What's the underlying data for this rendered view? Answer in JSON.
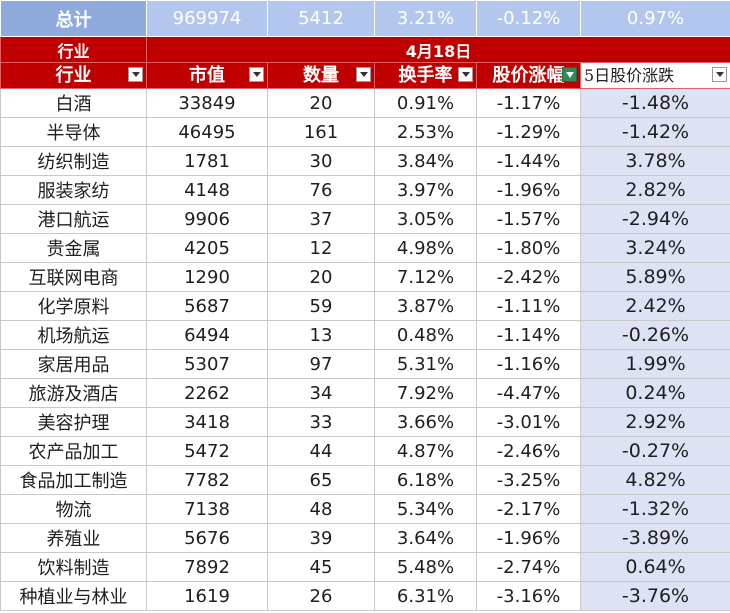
{
  "total": {
    "label": "总计",
    "market_value": "969974",
    "count": "5412",
    "turnover": "3.21%",
    "price_change": "-0.12%",
    "change_5d": "0.97%"
  },
  "group_header": {
    "label": "行业",
    "date": "4月18日"
  },
  "columns": [
    {
      "label": "行业"
    },
    {
      "label": "市值"
    },
    {
      "label": "数量"
    },
    {
      "label": "换手率"
    },
    {
      "label": "股价涨幅"
    },
    {
      "label": "5日股价涨跌"
    }
  ],
  "rows": [
    {
      "industry": "白酒",
      "market_value": "33849",
      "count": "20",
      "turnover": "0.91%",
      "price_change": "-1.17%",
      "change_5d": "-1.48%"
    },
    {
      "industry": "半导体",
      "market_value": "46495",
      "count": "161",
      "turnover": "2.53%",
      "price_change": "-1.29%",
      "change_5d": "-1.42%"
    },
    {
      "industry": "纺织制造",
      "market_value": "1781",
      "count": "30",
      "turnover": "3.84%",
      "price_change": "-1.44%",
      "change_5d": "3.78%"
    },
    {
      "industry": "服装家纺",
      "market_value": "4148",
      "count": "76",
      "turnover": "3.97%",
      "price_change": "-1.96%",
      "change_5d": "2.82%"
    },
    {
      "industry": "港口航运",
      "market_value": "9906",
      "count": "37",
      "turnover": "3.05%",
      "price_change": "-1.57%",
      "change_5d": "-2.94%"
    },
    {
      "industry": "贵金属",
      "market_value": "4205",
      "count": "12",
      "turnover": "4.98%",
      "price_change": "-1.80%",
      "change_5d": "3.24%"
    },
    {
      "industry": "互联网电商",
      "market_value": "1290",
      "count": "20",
      "turnover": "7.12%",
      "price_change": "-2.42%",
      "change_5d": "5.89%"
    },
    {
      "industry": "化学原料",
      "market_value": "5687",
      "count": "59",
      "turnover": "3.87%",
      "price_change": "-1.11%",
      "change_5d": "2.42%"
    },
    {
      "industry": "机场航运",
      "market_value": "6494",
      "count": "13",
      "turnover": "0.48%",
      "price_change": "-1.14%",
      "change_5d": "-0.26%"
    },
    {
      "industry": "家居用品",
      "market_value": "5307",
      "count": "97",
      "turnover": "5.31%",
      "price_change": "-1.16%",
      "change_5d": "1.99%"
    },
    {
      "industry": "旅游及酒店",
      "market_value": "2262",
      "count": "34",
      "turnover": "7.92%",
      "price_change": "-4.47%",
      "change_5d": "0.24%"
    },
    {
      "industry": "美容护理",
      "market_value": "3418",
      "count": "33",
      "turnover": "3.66%",
      "price_change": "-3.01%",
      "change_5d": "2.92%"
    },
    {
      "industry": "农产品加工",
      "market_value": "5472",
      "count": "44",
      "turnover": "4.87%",
      "price_change": "-2.46%",
      "change_5d": "-0.27%"
    },
    {
      "industry": "食品加工制造",
      "market_value": "7782",
      "count": "65",
      "turnover": "6.18%",
      "price_change": "-3.25%",
      "change_5d": "4.82%"
    },
    {
      "industry": "物流",
      "market_value": "7138",
      "count": "48",
      "turnover": "5.34%",
      "price_change": "-2.17%",
      "change_5d": "-1.32%"
    },
    {
      "industry": "养殖业",
      "market_value": "5676",
      "count": "39",
      "turnover": "3.64%",
      "price_change": "-1.96%",
      "change_5d": "-3.89%"
    },
    {
      "industry": "饮料制造",
      "market_value": "7892",
      "count": "45",
      "turnover": "5.48%",
      "price_change": "-2.74%",
      "change_5d": "0.64%"
    },
    {
      "industry": "种植业与林业",
      "market_value": "1619",
      "count": "26",
      "turnover": "6.31%",
      "price_change": "-3.16%",
      "change_5d": "-3.76%"
    }
  ]
}
